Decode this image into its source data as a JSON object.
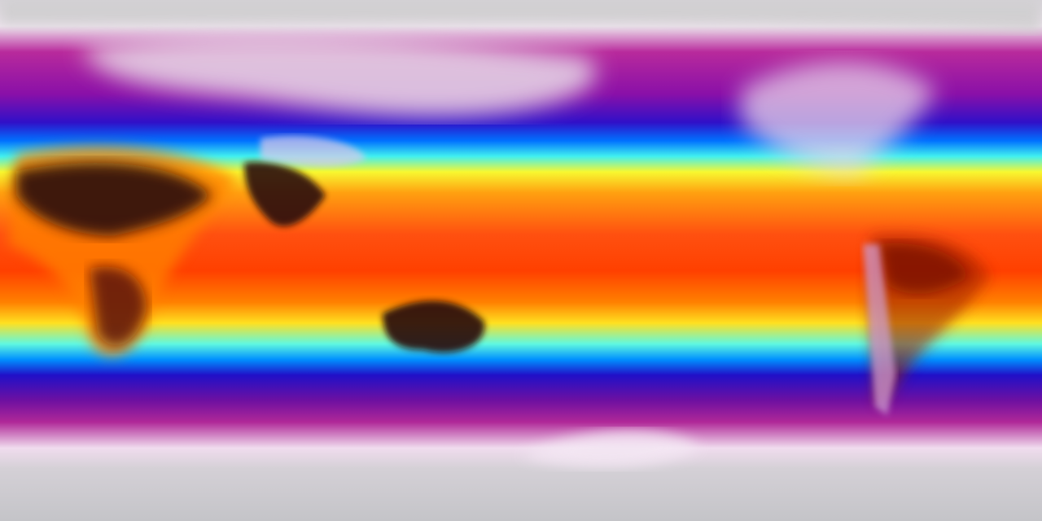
{
  "map": {
    "projection": "equirectangular",
    "field": "temperature",
    "colormap": [
      "#c8c8cc",
      "#f0e0f0",
      "#b01890",
      "#7010a0",
      "#2010d0",
      "#0060ff",
      "#40f0ff",
      "#ffff30",
      "#ffa000",
      "#ff5000",
      "#e02000",
      "#701000",
      "#200808"
    ],
    "background_color": "#c8c8cc",
    "hot_land_color": "#2a0808",
    "cold_land_color": "#f2eaf2"
  }
}
